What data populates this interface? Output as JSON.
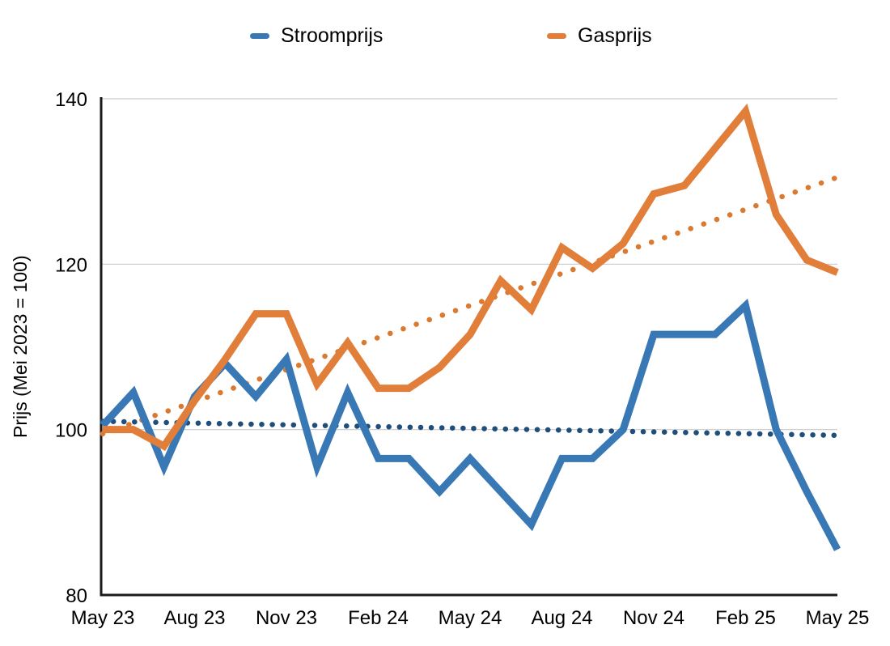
{
  "chart_data": {
    "type": "line",
    "title": "",
    "ylabel": "Prijs (Mei 2023 = 100)",
    "xlabel": "",
    "ylim": [
      80,
      140
    ],
    "y_ticks": [
      80,
      100,
      120,
      140
    ],
    "grid_values": [
      100,
      120,
      140
    ],
    "legend_position": "top",
    "x": [
      "May 23",
      "Jun 23",
      "Jul 23",
      "Aug 23",
      "Sep 23",
      "Oct 23",
      "Nov 23",
      "Dec 23",
      "Jan 24",
      "Feb 24",
      "Mar 24",
      "Apr 24",
      "May 24",
      "Jun 24",
      "Jul 24",
      "Aug 24",
      "Sep 24",
      "Oct 24",
      "Nov 24",
      "Dec 24",
      "Jan 25",
      "Feb 25",
      "Mar 25",
      "Apr 25",
      "May 25"
    ],
    "x_tick_labels": [
      "May 23",
      "Aug 23",
      "Nov 23",
      "Feb 24",
      "May 24",
      "Aug 24",
      "Nov 24",
      "Feb 25",
      "May 25"
    ],
    "x_tick_step": 3,
    "series": [
      {
        "name": "Stroomprijs",
        "color": "#3878b4",
        "values": [
          100.5,
          104.5,
          95.5,
          104,
          108,
          104,
          108.5,
          95.5,
          104.5,
          96.5,
          96.5,
          92.5,
          96.5,
          92.5,
          88.5,
          96.5,
          96.5,
          100,
          111.5,
          111.5,
          111.5,
          115,
          100,
          92.5,
          85.5
        ]
      },
      {
        "name": "Gasprijs",
        "color": "#e07e3a",
        "values": [
          100,
          100,
          98,
          103.5,
          108.5,
          114,
          114,
          105.5,
          110.5,
          105,
          105,
          107.5,
          111.5,
          118,
          114.5,
          122,
          119.5,
          122.5,
          128.5,
          129.5,
          134,
          138.5,
          126,
          120.5,
          119
        ]
      }
    ],
    "trendlines": [
      {
        "name": "Stroomprijs trend",
        "color": "#1f4e7a",
        "start": 101,
        "end": 99.3,
        "dash_gap": 13
      },
      {
        "name": "Gasprijs trend",
        "color": "#d97a30",
        "start": 99.5,
        "end": 130.5,
        "dash_gap": 17
      }
    ],
    "colors": {
      "grid": "#c9c9c9",
      "axis": "#1a1a1a",
      "text": "#000000"
    }
  }
}
